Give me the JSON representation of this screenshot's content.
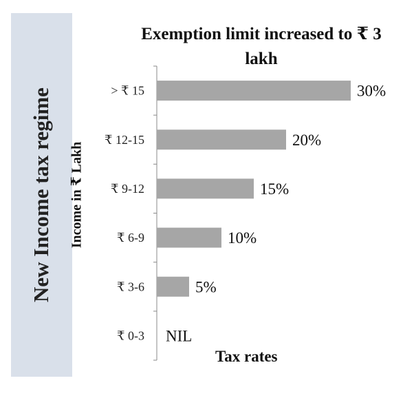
{
  "side_panel": {
    "title": "New Income tax regime"
  },
  "chart_data": {
    "type": "bar",
    "orientation": "horizontal",
    "title": "Exemption limit  increased to ₹ 3 lakh",
    "xlabel": "Tax rates",
    "ylabel": "Income in ₹ Lakh",
    "categories": [
      "> ₹ 15",
      "₹ 12-15",
      "₹ 9-12",
      "₹ 6-9",
      "₹ 3-6",
      "₹ 0-3"
    ],
    "values": [
      30,
      20,
      15,
      10,
      5,
      0
    ],
    "data_labels": [
      "30%",
      "20%",
      "15%",
      "10%",
      "5%",
      "NIL"
    ],
    "xlim": [
      0,
      30
    ],
    "grid": false,
    "bar_color": "#a6a6a6"
  }
}
